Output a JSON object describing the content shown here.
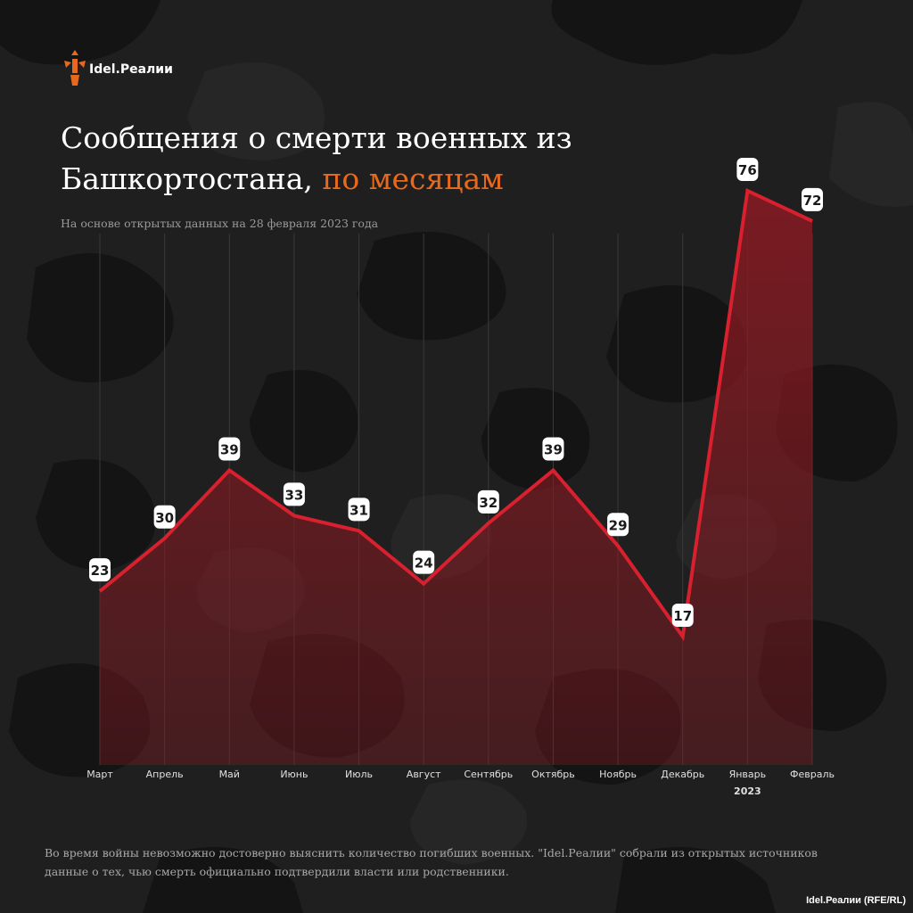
{
  "brand": {
    "logo_text": "Idel.Реалии",
    "accent_color": "#e8681c"
  },
  "header": {
    "title_part1": "Сообщения о смерти военных из Башкортостана,",
    "title_accent": "по месяцам",
    "subtitle": "На основе открытых данных на 28 февраля 2023 года"
  },
  "chart_data": {
    "type": "area",
    "categories": [
      "Март",
      "Апрель",
      "Май",
      "Июнь",
      "Июль",
      "Август",
      "Сентябрь",
      "Октябрь",
      "Ноябрь",
      "Декабрь",
      "Январь",
      "Февраль"
    ],
    "category_sublabels": {
      "10": "2023"
    },
    "values": [
      23,
      30,
      39,
      33,
      31,
      24,
      32,
      39,
      29,
      17,
      76,
      72
    ],
    "ylim": [
      0,
      90
    ],
    "grid": "vertical",
    "line_color": "#d8202e",
    "fill_color": "#8a1a22"
  },
  "footer": {
    "note": "Во время войны невозможно достоверно выяснить количество погибших военных. \"Idel.Реалии\" собрали из открытых источников данные о тех, чью смерть официально подтвердили власти или родственники.",
    "credit": "Idel.Реалии (RFE/RL)"
  }
}
